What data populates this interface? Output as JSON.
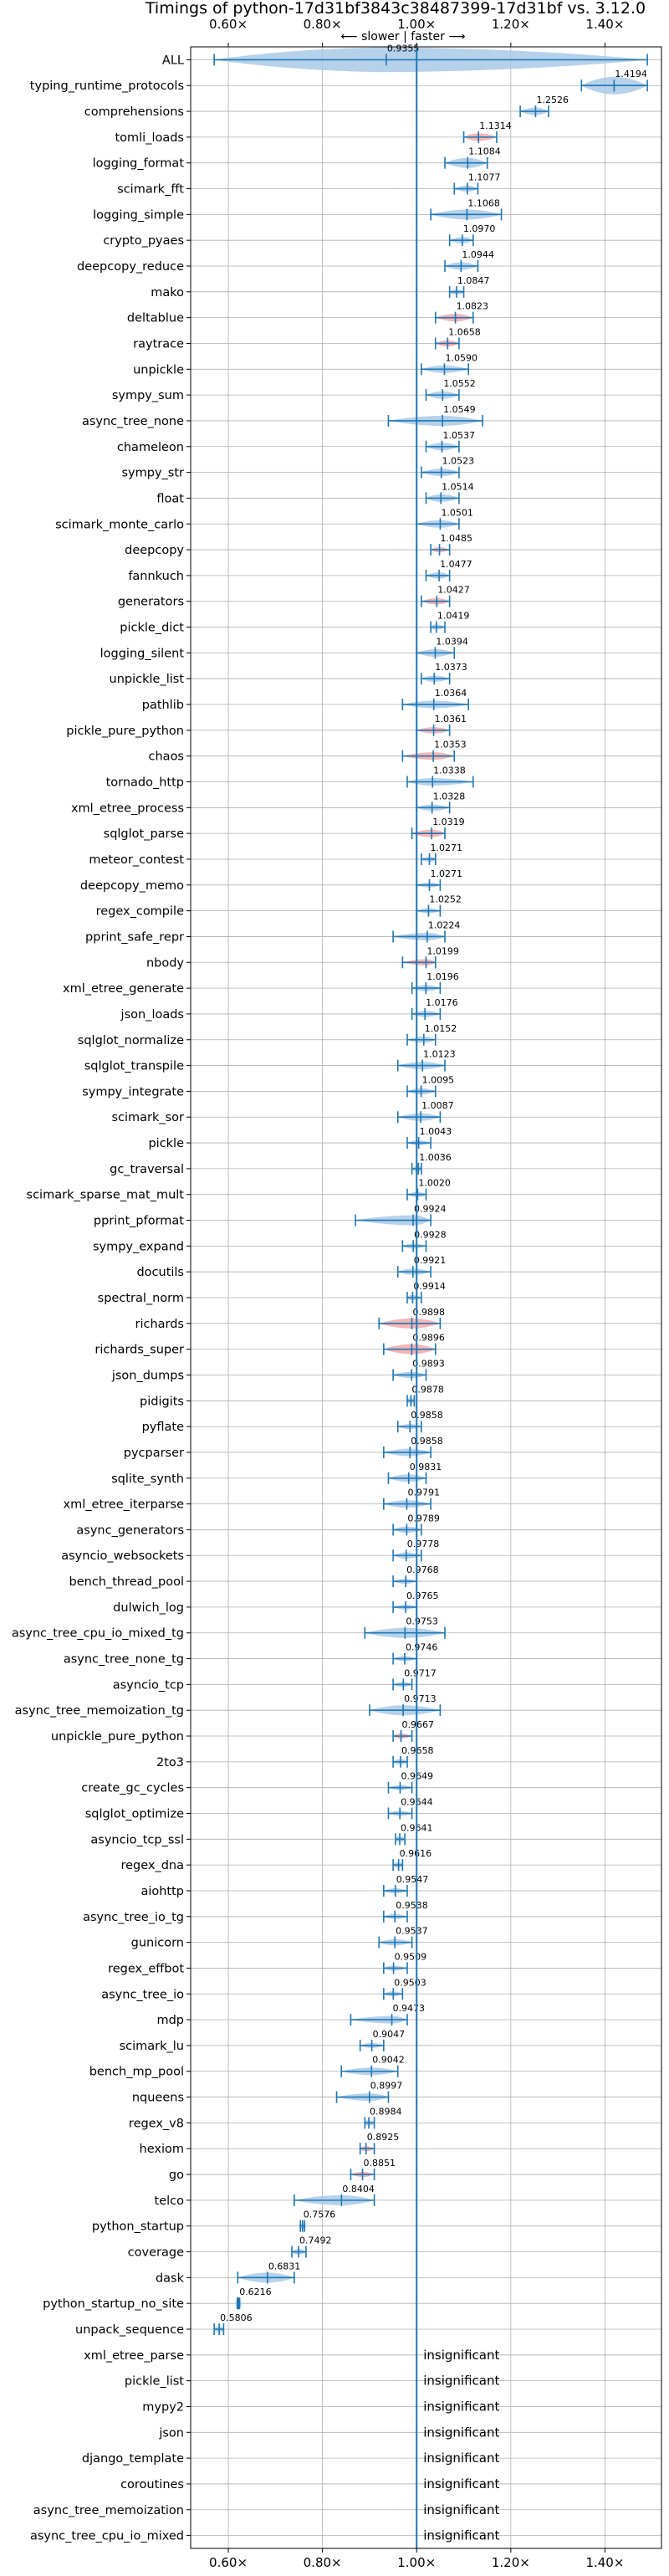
{
  "chart_data": {
    "type": "violin",
    "title": "Timings of python-17d31bf3843c38487399-17d31bf vs. 3.12.0",
    "direction_label": "⟵ slower | faster ⟶",
    "xlim": [
      0.52,
      1.52
    ],
    "xticks": [
      {
        "value": 0.6,
        "label": "0.60×"
      },
      {
        "value": 0.8,
        "label": "0.80×"
      },
      {
        "value": 1.0,
        "label": "1.00×"
      },
      {
        "value": 1.2,
        "label": "1.20×"
      },
      {
        "value": 1.4,
        "label": "1.40×"
      }
    ],
    "reference_line": 1.0,
    "grid": true,
    "insignificant_text": "insignificant",
    "colors": {
      "normal": "#a9c9e6",
      "highlight": "#f4a8a8",
      "line": "#1f77b4"
    },
    "benchmarks": [
      {
        "name": "ALL",
        "value": 0.9355,
        "label": "0.9355",
        "min": 0.57,
        "max": 1.49,
        "width": 0.12,
        "highlight": false
      },
      {
        "name": "typing_runtime_protocols",
        "value": 1.4194,
        "label": "1.4194",
        "min": 1.35,
        "max": 1.49,
        "width": 0.07,
        "highlight": false
      },
      {
        "name": "comprehensions",
        "value": 1.2526,
        "label": "1.2526",
        "min": 1.22,
        "max": 1.28,
        "width": 0.03,
        "highlight": false
      },
      {
        "name": "tomli_loads",
        "value": 1.1314,
        "label": "1.1314",
        "min": 1.1,
        "max": 1.17,
        "width": 0.03,
        "highlight": true
      },
      {
        "name": "logging_format",
        "value": 1.1084,
        "label": "1.1084",
        "min": 1.06,
        "max": 1.15,
        "width": 0.04,
        "highlight": false
      },
      {
        "name": "scimark_fft",
        "value": 1.1077,
        "label": "1.1077",
        "min": 1.08,
        "max": 1.13,
        "width": 0.025,
        "highlight": false
      },
      {
        "name": "logging_simple",
        "value": 1.1068,
        "label": "1.1068",
        "min": 1.03,
        "max": 1.18,
        "width": 0.04,
        "highlight": false
      },
      {
        "name": "crypto_pyaes",
        "value": 1.097,
        "label": "1.0970",
        "min": 1.07,
        "max": 1.12,
        "width": 0.025,
        "highlight": false
      },
      {
        "name": "deepcopy_reduce",
        "value": 1.0944,
        "label": "1.0944",
        "min": 1.06,
        "max": 1.13,
        "width": 0.03,
        "highlight": false
      },
      {
        "name": "mako",
        "value": 1.0847,
        "label": "1.0847",
        "min": 1.07,
        "max": 1.1,
        "width": 0.02,
        "highlight": false
      },
      {
        "name": "deltablue",
        "value": 1.0823,
        "label": "1.0823",
        "min": 1.04,
        "max": 1.12,
        "width": 0.03,
        "highlight": true
      },
      {
        "name": "raytrace",
        "value": 1.0658,
        "label": "1.0658",
        "min": 1.04,
        "max": 1.09,
        "width": 0.025,
        "highlight": true
      },
      {
        "name": "unpickle",
        "value": 1.059,
        "label": "1.0590",
        "min": 1.01,
        "max": 1.11,
        "width": 0.03,
        "highlight": false
      },
      {
        "name": "sympy_sum",
        "value": 1.0552,
        "label": "1.0552",
        "min": 1.02,
        "max": 1.09,
        "width": 0.03,
        "highlight": false
      },
      {
        "name": "async_tree_none",
        "value": 1.0549,
        "label": "1.0549",
        "min": 0.94,
        "max": 1.14,
        "width": 0.04,
        "highlight": false
      },
      {
        "name": "chameleon",
        "value": 1.0537,
        "label": "1.0537",
        "min": 1.02,
        "max": 1.09,
        "width": 0.03,
        "highlight": false
      },
      {
        "name": "sympy_str",
        "value": 1.0523,
        "label": "1.0523",
        "min": 1.01,
        "max": 1.09,
        "width": 0.03,
        "highlight": false
      },
      {
        "name": "float",
        "value": 1.0514,
        "label": "1.0514",
        "min": 1.02,
        "max": 1.09,
        "width": 0.03,
        "highlight": false
      },
      {
        "name": "scimark_monte_carlo",
        "value": 1.0501,
        "label": "1.0501",
        "min": 1.0,
        "max": 1.09,
        "width": 0.03,
        "highlight": false
      },
      {
        "name": "deepcopy",
        "value": 1.0485,
        "label": "1.0485",
        "min": 1.03,
        "max": 1.07,
        "width": 0.02,
        "highlight": true
      },
      {
        "name": "fannkuch",
        "value": 1.0477,
        "label": "1.0477",
        "min": 1.02,
        "max": 1.07,
        "width": 0.025,
        "highlight": false
      },
      {
        "name": "generators",
        "value": 1.0427,
        "label": "1.0427",
        "min": 1.01,
        "max": 1.07,
        "width": 0.025,
        "highlight": true
      },
      {
        "name": "pickle_dict",
        "value": 1.0419,
        "label": "1.0419",
        "min": 1.03,
        "max": 1.06,
        "width": 0.02,
        "highlight": false
      },
      {
        "name": "logging_silent",
        "value": 1.0394,
        "label": "1.0394",
        "min": 1.0,
        "max": 1.08,
        "width": 0.03,
        "highlight": false
      },
      {
        "name": "unpickle_list",
        "value": 1.0373,
        "label": "1.0373",
        "min": 1.01,
        "max": 1.07,
        "width": 0.025,
        "highlight": false
      },
      {
        "name": "pathlib",
        "value": 1.0364,
        "label": "1.0364",
        "min": 0.97,
        "max": 1.11,
        "width": 0.03,
        "highlight": false
      },
      {
        "name": "pickle_pure_python",
        "value": 1.0361,
        "label": "1.0361",
        "min": 1.0,
        "max": 1.07,
        "width": 0.025,
        "highlight": true
      },
      {
        "name": "chaos",
        "value": 1.0353,
        "label": "1.0353",
        "min": 0.97,
        "max": 1.08,
        "width": 0.03,
        "highlight": true
      },
      {
        "name": "tornado_http",
        "value": 1.0338,
        "label": "1.0338",
        "min": 0.98,
        "max": 1.12,
        "width": 0.03,
        "highlight": false
      },
      {
        "name": "xml_etree_process",
        "value": 1.0328,
        "label": "1.0328",
        "min": 1.0,
        "max": 1.07,
        "width": 0.025,
        "highlight": false
      },
      {
        "name": "sqlglot_parse",
        "value": 1.0319,
        "label": "1.0319",
        "min": 0.99,
        "max": 1.06,
        "width": 0.03,
        "highlight": true
      },
      {
        "name": "meteor_contest",
        "value": 1.0271,
        "label": "1.0271",
        "min": 1.01,
        "max": 1.04,
        "width": 0.02,
        "highlight": false
      },
      {
        "name": "deepcopy_memo",
        "value": 1.0271,
        "label": "1.0271",
        "min": 1.0,
        "max": 1.05,
        "width": 0.02,
        "highlight": false
      },
      {
        "name": "regex_compile",
        "value": 1.0252,
        "label": "1.0252",
        "min": 1.0,
        "max": 1.05,
        "width": 0.02,
        "highlight": false
      },
      {
        "name": "pprint_safe_repr",
        "value": 1.0224,
        "label": "1.0224",
        "min": 0.95,
        "max": 1.06,
        "width": 0.03,
        "highlight": false
      },
      {
        "name": "nbody",
        "value": 1.0199,
        "label": "1.0199",
        "min": 0.97,
        "max": 1.04,
        "width": 0.025,
        "highlight": true
      },
      {
        "name": "xml_etree_generate",
        "value": 1.0196,
        "label": "1.0196",
        "min": 0.99,
        "max": 1.05,
        "width": 0.025,
        "highlight": false
      },
      {
        "name": "json_loads",
        "value": 1.0176,
        "label": "1.0176",
        "min": 0.99,
        "max": 1.05,
        "width": 0.025,
        "highlight": false
      },
      {
        "name": "sqlglot_normalize",
        "value": 1.0152,
        "label": "1.0152",
        "min": 0.98,
        "max": 1.04,
        "width": 0.025,
        "highlight": false
      },
      {
        "name": "sqlglot_transpile",
        "value": 1.0123,
        "label": "1.0123",
        "min": 0.96,
        "max": 1.06,
        "width": 0.03,
        "highlight": false
      },
      {
        "name": "sympy_integrate",
        "value": 1.0095,
        "label": "1.0095",
        "min": 0.98,
        "max": 1.04,
        "width": 0.025,
        "highlight": false
      },
      {
        "name": "scimark_sor",
        "value": 1.0087,
        "label": "1.0087",
        "min": 0.96,
        "max": 1.05,
        "width": 0.03,
        "highlight": false
      },
      {
        "name": "pickle",
        "value": 1.0043,
        "label": "1.0043",
        "min": 0.98,
        "max": 1.03,
        "width": 0.02,
        "highlight": false
      },
      {
        "name": "gc_traversal",
        "value": 1.0036,
        "label": "1.0036",
        "min": 0.99,
        "max": 1.01,
        "width": 0.015,
        "highlight": false
      },
      {
        "name": "scimark_sparse_mat_mult",
        "value": 1.002,
        "label": "1.0020",
        "min": 0.98,
        "max": 1.02,
        "width": 0.02,
        "highlight": false
      },
      {
        "name": "pprint_pformat",
        "value": 0.9924,
        "label": "0.9924",
        "min": 0.87,
        "max": 1.03,
        "width": 0.04,
        "highlight": false
      },
      {
        "name": "sympy_expand",
        "value": 0.9928,
        "label": "0.9928",
        "min": 0.97,
        "max": 1.02,
        "width": 0.02,
        "highlight": false
      },
      {
        "name": "docutils",
        "value": 0.9921,
        "label": "0.9921",
        "min": 0.96,
        "max": 1.03,
        "width": 0.025,
        "highlight": false
      },
      {
        "name": "spectral_norm",
        "value": 0.9914,
        "label": "0.9914",
        "min": 0.98,
        "max": 1.01,
        "width": 0.015,
        "highlight": false
      },
      {
        "name": "richards",
        "value": 0.9898,
        "label": "0.9898",
        "min": 0.92,
        "max": 1.05,
        "width": 0.04,
        "highlight": true
      },
      {
        "name": "richards_super",
        "value": 0.9896,
        "label": "0.9896",
        "min": 0.93,
        "max": 1.04,
        "width": 0.04,
        "highlight": true
      },
      {
        "name": "json_dumps",
        "value": 0.9893,
        "label": "0.9893",
        "min": 0.95,
        "max": 1.02,
        "width": 0.025,
        "highlight": false
      },
      {
        "name": "pidigits",
        "value": 0.9878,
        "label": "0.9878",
        "min": 0.98,
        "max": 0.995,
        "width": 0.012,
        "highlight": false
      },
      {
        "name": "pyflate",
        "value": 0.9858,
        "label": "0.9858",
        "min": 0.96,
        "max": 1.01,
        "width": 0.02,
        "highlight": false
      },
      {
        "name": "pycparser",
        "value": 0.9858,
        "label": "0.9858",
        "min": 0.93,
        "max": 1.03,
        "width": 0.03,
        "highlight": false
      },
      {
        "name": "sqlite_synth",
        "value": 0.9831,
        "label": "0.9831",
        "min": 0.94,
        "max": 1.02,
        "width": 0.03,
        "highlight": false
      },
      {
        "name": "xml_etree_iterparse",
        "value": 0.9791,
        "label": "0.9791",
        "min": 0.93,
        "max": 1.03,
        "width": 0.03,
        "highlight": false
      },
      {
        "name": "async_generators",
        "value": 0.9789,
        "label": "0.9789",
        "min": 0.95,
        "max": 1.01,
        "width": 0.025,
        "highlight": false
      },
      {
        "name": "asyncio_websockets",
        "value": 0.9778,
        "label": "0.9778",
        "min": 0.95,
        "max": 1.01,
        "width": 0.025,
        "highlight": false
      },
      {
        "name": "bench_thread_pool",
        "value": 0.9768,
        "label": "0.9768",
        "min": 0.95,
        "max": 1.0,
        "width": 0.02,
        "highlight": false
      },
      {
        "name": "dulwich_log",
        "value": 0.9765,
        "label": "0.9765",
        "min": 0.95,
        "max": 1.0,
        "width": 0.02,
        "highlight": false
      },
      {
        "name": "async_tree_cpu_io_mixed_tg",
        "value": 0.9753,
        "label": "0.9753",
        "min": 0.89,
        "max": 1.06,
        "width": 0.04,
        "highlight": false
      },
      {
        "name": "async_tree_none_tg",
        "value": 0.9746,
        "label": "0.9746",
        "min": 0.95,
        "max": 1.0,
        "width": 0.02,
        "highlight": false
      },
      {
        "name": "asyncio_tcp",
        "value": 0.9717,
        "label": "0.9717",
        "min": 0.95,
        "max": 0.99,
        "width": 0.02,
        "highlight": false
      },
      {
        "name": "async_tree_memoization_tg",
        "value": 0.9713,
        "label": "0.9713",
        "min": 0.9,
        "max": 1.05,
        "width": 0.04,
        "highlight": false
      },
      {
        "name": "unpickle_pure_python",
        "value": 0.9667,
        "label": "0.9667",
        "min": 0.95,
        "max": 0.99,
        "width": 0.02,
        "highlight": true
      },
      {
        "name": "2to3",
        "value": 0.9658,
        "label": "0.9658",
        "min": 0.95,
        "max": 0.98,
        "width": 0.015,
        "highlight": false
      },
      {
        "name": "create_gc_cycles",
        "value": 0.9649,
        "label": "0.9649",
        "min": 0.94,
        "max": 0.99,
        "width": 0.02,
        "highlight": false
      },
      {
        "name": "sqlglot_optimize",
        "value": 0.9644,
        "label": "0.9644",
        "min": 0.94,
        "max": 0.99,
        "width": 0.02,
        "highlight": false
      },
      {
        "name": "asyncio_tcp_ssl",
        "value": 0.9641,
        "label": "0.9641",
        "min": 0.955,
        "max": 0.975,
        "width": 0.012,
        "highlight": false
      },
      {
        "name": "regex_dna",
        "value": 0.9616,
        "label": "0.9616",
        "min": 0.95,
        "max": 0.97,
        "width": 0.012,
        "highlight": false
      },
      {
        "name": "aiohttp",
        "value": 0.9547,
        "label": "0.9547",
        "min": 0.93,
        "max": 0.98,
        "width": 0.02,
        "highlight": false
      },
      {
        "name": "async_tree_io_tg",
        "value": 0.9538,
        "label": "0.9538",
        "min": 0.93,
        "max": 0.98,
        "width": 0.02,
        "highlight": false
      },
      {
        "name": "gunicorn",
        "value": 0.9537,
        "label": "0.9537",
        "min": 0.92,
        "max": 0.99,
        "width": 0.025,
        "highlight": false
      },
      {
        "name": "regex_effbot",
        "value": 0.9509,
        "label": "0.9509",
        "min": 0.93,
        "max": 0.98,
        "width": 0.02,
        "highlight": false
      },
      {
        "name": "async_tree_io",
        "value": 0.9503,
        "label": "0.9503",
        "min": 0.93,
        "max": 0.97,
        "width": 0.02,
        "highlight": false
      },
      {
        "name": "mdp",
        "value": 0.9473,
        "label": "0.9473",
        "min": 0.86,
        "max": 0.98,
        "width": 0.03,
        "highlight": false
      },
      {
        "name": "scimark_lu",
        "value": 0.9047,
        "label": "0.9047",
        "min": 0.88,
        "max": 0.93,
        "width": 0.02,
        "highlight": false
      },
      {
        "name": "bench_mp_pool",
        "value": 0.9042,
        "label": "0.9042",
        "min": 0.84,
        "max": 0.96,
        "width": 0.03,
        "highlight": false
      },
      {
        "name": "nqueens",
        "value": 0.8997,
        "label": "0.8997",
        "min": 0.83,
        "max": 0.94,
        "width": 0.03,
        "highlight": false
      },
      {
        "name": "regex_v8",
        "value": 0.8984,
        "label": "0.8984",
        "min": 0.89,
        "max": 0.91,
        "width": 0.012,
        "highlight": false
      },
      {
        "name": "hexiom",
        "value": 0.8925,
        "label": "0.8925",
        "min": 0.88,
        "max": 0.91,
        "width": 0.015,
        "highlight": true
      },
      {
        "name": "go",
        "value": 0.8851,
        "label": "0.8851",
        "min": 0.86,
        "max": 0.91,
        "width": 0.02,
        "highlight": true
      },
      {
        "name": "telco",
        "value": 0.8404,
        "label": "0.8404",
        "min": 0.74,
        "max": 0.91,
        "width": 0.04,
        "highlight": false
      },
      {
        "name": "python_startup",
        "value": 0.7576,
        "label": "0.7576",
        "min": 0.753,
        "max": 0.762,
        "width": 0.008,
        "highlight": false
      },
      {
        "name": "coverage",
        "value": 0.7492,
        "label": "0.7492",
        "min": 0.735,
        "max": 0.765,
        "width": 0.015,
        "highlight": false
      },
      {
        "name": "dask",
        "value": 0.6831,
        "label": "0.6831",
        "min": 0.62,
        "max": 0.74,
        "width": 0.04,
        "highlight": false
      },
      {
        "name": "python_startup_no_site",
        "value": 0.6216,
        "label": "0.6216",
        "min": 0.619,
        "max": 0.624,
        "width": 0.006,
        "highlight": false
      },
      {
        "name": "unpack_sequence",
        "value": 0.5806,
        "label": "0.5806",
        "min": 0.57,
        "max": 0.59,
        "width": 0.01,
        "highlight": false
      },
      {
        "name": "xml_etree_parse",
        "insignificant": true
      },
      {
        "name": "pickle_list",
        "insignificant": true
      },
      {
        "name": "mypy2",
        "insignificant": true
      },
      {
        "name": "json",
        "insignificant": true
      },
      {
        "name": "django_template",
        "insignificant": true
      },
      {
        "name": "coroutines",
        "insignificant": true
      },
      {
        "name": "async_tree_memoization",
        "insignificant": true
      },
      {
        "name": "async_tree_cpu_io_mixed",
        "insignificant": true
      }
    ]
  }
}
